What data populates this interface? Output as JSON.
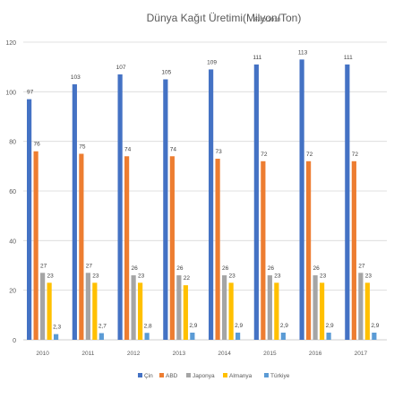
{
  "chart_data": {
    "type": "bar",
    "title": "Dünya Kağıt Üretimi(Milyon/Ton)",
    "subtitle": "FAO,2019",
    "xlabel": "",
    "ylabel": "",
    "ylim": [
      0,
      120
    ],
    "yticks": [
      0,
      20,
      40,
      60,
      80,
      100,
      120
    ],
    "grid": true,
    "legend_position": "bottom",
    "categories": [
      "2010",
      "2011",
      "2012",
      "2013",
      "2014",
      "2015",
      "2016",
      "2017"
    ],
    "series": [
      {
        "name": "Çin",
        "color": "#4472C4",
        "values": [
          97,
          103,
          107,
          105,
          109,
          111,
          113,
          111
        ],
        "labels": [
          "97",
          "103",
          "107",
          "105",
          "109",
          "111",
          "113",
          "111"
        ]
      },
      {
        "name": "ABD",
        "color": "#ED7D31",
        "values": [
          76,
          75,
          74,
          74,
          73,
          72,
          72,
          72
        ],
        "labels": [
          "76",
          "75",
          "74",
          "74",
          "73",
          "72",
          "72",
          "72"
        ]
      },
      {
        "name": "Japonya",
        "color": "#A5A5A5",
        "values": [
          27,
          27,
          26,
          26,
          26,
          26,
          26,
          27
        ],
        "labels": [
          "27",
          "27",
          "26",
          "26",
          "26",
          "26",
          "26",
          "27"
        ]
      },
      {
        "name": "Almanya",
        "color": "#FFC000",
        "values": [
          23,
          23,
          23,
          22,
          23,
          23,
          23,
          23
        ],
        "labels": [
          "23",
          "23",
          "23",
          "22",
          "23",
          "23",
          "23",
          "23"
        ]
      },
      {
        "name": "Türkiye",
        "color": "#5B9BD5",
        "values": [
          2.3,
          2.7,
          2.8,
          2.9,
          2.9,
          2.9,
          2.9,
          2.9
        ],
        "labels": [
          "2,3",
          "2,7",
          "2,8",
          "2,9",
          "2,9",
          "2,9",
          "2,9",
          "2,9"
        ]
      }
    ]
  }
}
